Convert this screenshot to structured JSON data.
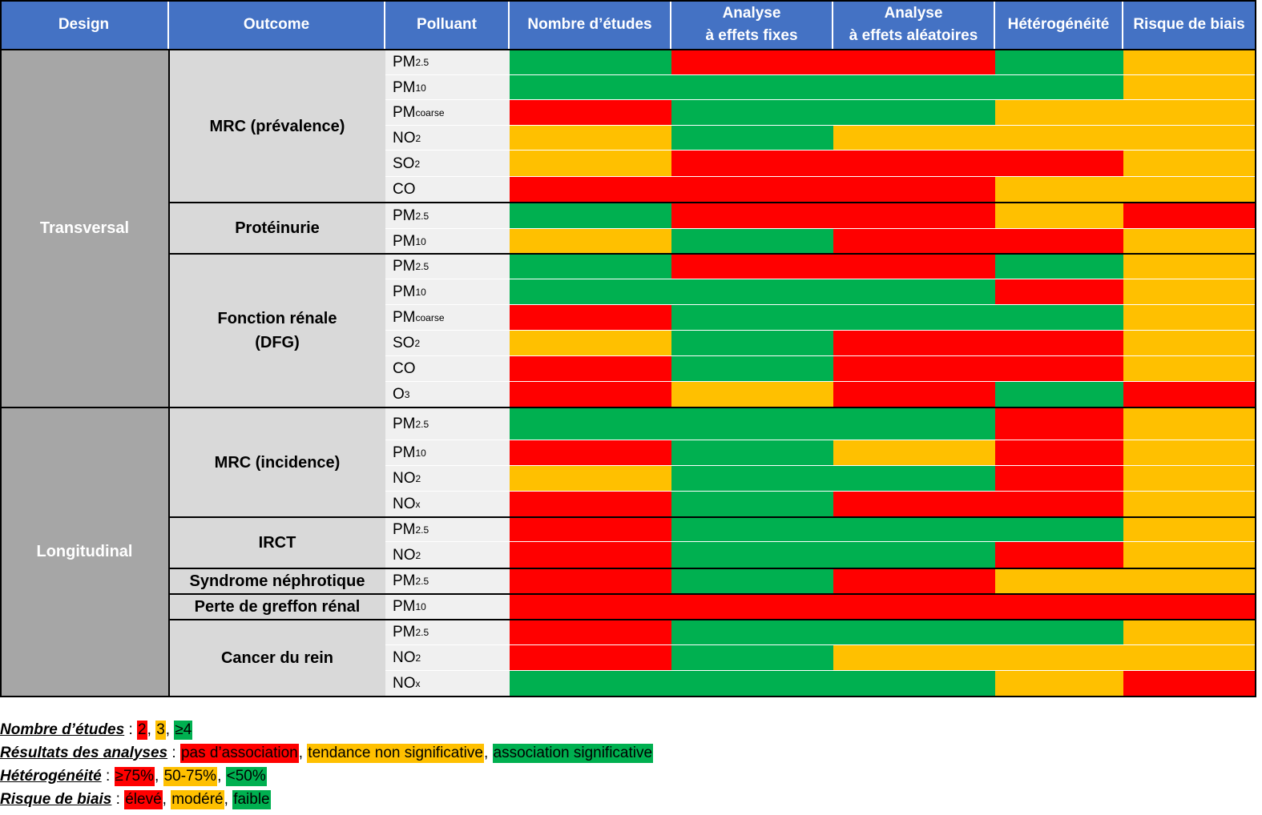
{
  "colors": {
    "red": "#ff0000",
    "orange": "#ffc000",
    "green": "#00b050",
    "header": "#4472c4",
    "design_bg": "#a6a6a6",
    "outcome_bg": "#d9d9d9",
    "pollutant_bg": "#f0f0f0"
  },
  "headers": [
    "Design",
    "Outcome",
    "Polluant",
    "Nombre d’études",
    "Analyse\nà effets fixes",
    "Analyse\nà effets aléatoires",
    "Hétérogénéité",
    "Risque de biais"
  ],
  "designs": [
    "Transversal",
    "Longitudinal"
  ],
  "outcomes": [
    "MRC (prévalence)",
    "Protéinurie",
    "Fonction rénale\n(DFG)",
    "MRC (incidence)",
    "IRCT",
    "Syndrome néphrotique",
    "Perte de greffon rénal",
    "Cancer du rein"
  ],
  "rows": [
    {
      "base": "PM",
      "sub": "2.5",
      "ratings": [
        "G",
        "R",
        "R",
        "G",
        "O"
      ]
    },
    {
      "base": "PM",
      "sub": "10",
      "ratings": [
        "G",
        "G",
        "G",
        "G",
        "O"
      ]
    },
    {
      "base": "PM",
      "sub": "coarse",
      "ratings": [
        "R",
        "G",
        "G",
        "O",
        "O"
      ]
    },
    {
      "base": "NO",
      "sub": "2",
      "ratings": [
        "O",
        "G",
        "O",
        "O",
        "O"
      ]
    },
    {
      "base": "SO",
      "sub": "2",
      "ratings": [
        "O",
        "R",
        "R",
        "R",
        "O"
      ]
    },
    {
      "base": "CO",
      "sub": "",
      "ratings": [
        "R",
        "R",
        "R",
        "O",
        "O"
      ]
    },
    {
      "base": "PM",
      "sub": "2.5",
      "ratings": [
        "G",
        "R",
        "R",
        "O",
        "R"
      ]
    },
    {
      "base": "PM",
      "sub": "10",
      "ratings": [
        "O",
        "G",
        "R",
        "R",
        "O"
      ]
    },
    {
      "base": "PM",
      "sub": "2.5",
      "ratings": [
        "G",
        "R",
        "R",
        "G",
        "O"
      ]
    },
    {
      "base": "PM",
      "sub": "10",
      "ratings": [
        "G",
        "G",
        "G",
        "R",
        "O"
      ]
    },
    {
      "base": "PM",
      "sub": "coarse",
      "ratings": [
        "R",
        "G",
        "G",
        "G",
        "O"
      ]
    },
    {
      "base": "SO",
      "sub": "2",
      "ratings": [
        "O",
        "G",
        "R",
        "R",
        "O"
      ]
    },
    {
      "base": "CO",
      "sub": "",
      "ratings": [
        "R",
        "G",
        "R",
        "R",
        "O"
      ]
    },
    {
      "base": "O",
      "sub": "3",
      "ratings": [
        "R",
        "O",
        "R",
        "G",
        "R"
      ]
    },
    {
      "base": "PM",
      "sub": "2.5",
      "ratings": [
        "G",
        "G",
        "G",
        "R",
        "O"
      ]
    },
    {
      "base": "PM",
      "sub": "10",
      "ratings": [
        "R",
        "G",
        "O",
        "R",
        "O"
      ]
    },
    {
      "base": "NO",
      "sub": "2",
      "ratings": [
        "O",
        "G",
        "G",
        "R",
        "O"
      ]
    },
    {
      "base": "NO",
      "sub": "x",
      "ratings": [
        "R",
        "G",
        "R",
        "R",
        "O"
      ]
    },
    {
      "base": "PM",
      "sub": "2.5",
      "ratings": [
        "R",
        "G",
        "G",
        "G",
        "O"
      ]
    },
    {
      "base": "NO",
      "sub": "2",
      "ratings": [
        "R",
        "G",
        "G",
        "R",
        "O"
      ]
    },
    {
      "base": "PM",
      "sub": "2.5",
      "ratings": [
        "R",
        "G",
        "R",
        "O",
        "O"
      ]
    },
    {
      "base": "PM",
      "sub": "10",
      "ratings": [
        "R",
        "R",
        "R",
        "R",
        "R"
      ]
    },
    {
      "base": "PM",
      "sub": "2.5",
      "ratings": [
        "R",
        "G",
        "G",
        "G",
        "O"
      ]
    },
    {
      "base": "NO",
      "sub": "2",
      "ratings": [
        "R",
        "G",
        "O",
        "O",
        "O"
      ]
    },
    {
      "base": "NO",
      "sub": "x",
      "ratings": [
        "G",
        "G",
        "G",
        "O",
        "R"
      ]
    }
  ],
  "legend": {
    "nombre": {
      "title": "Nombre d’études",
      "sep": " : ",
      "items": [
        {
          "text": "2",
          "color": "R"
        },
        {
          "text": "3",
          "color": "O"
        },
        {
          "text": "≥4",
          "color": "G"
        }
      ]
    },
    "resultats": {
      "title": "Résultats des analyses",
      "sep": " : ",
      "items": [
        {
          "text": "pas d’association",
          "color": "R"
        },
        {
          "text": "tendance non significative",
          "color": "O"
        },
        {
          "text": "association significative",
          "color": "G"
        }
      ]
    },
    "heterogeneite": {
      "title": "Hétérogénéité",
      "sep": " : ",
      "items": [
        {
          "text": "≥75%",
          "color": "R"
        },
        {
          "text": "50-75%",
          "color": "O"
        },
        {
          "text": "<50%",
          "color": "G"
        }
      ]
    },
    "risque": {
      "title": "Risque de biais",
      "sep": " : ",
      "items": [
        {
          "text": "élevé",
          "color": "R"
        },
        {
          "text": "modéré",
          "color": "O"
        },
        {
          "text": "faible",
          "color": "G"
        }
      ]
    }
  }
}
